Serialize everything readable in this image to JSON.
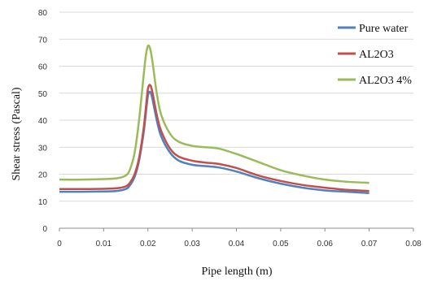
{
  "chart_data": {
    "type": "line",
    "title": "",
    "xlabel": "Pipe length (m)",
    "ylabel": "Shear stress (Pascal)",
    "xlim": [
      0,
      0.08
    ],
    "ylim": [
      0,
      80
    ],
    "xticks": [
      0,
      0.01,
      0.02,
      0.03,
      0.04,
      0.05,
      0.06,
      0.07,
      0.08
    ],
    "yticks": [
      0,
      10,
      20,
      30,
      40,
      50,
      60,
      70,
      80
    ],
    "grid": "horizontal",
    "legend_position": "right",
    "series": [
      {
        "name": "Pure water",
        "color": "#4f81bd",
        "x": [
          0,
          0.005,
          0.01,
          0.013,
          0.015,
          0.016,
          0.017,
          0.018,
          0.019,
          0.0195,
          0.02,
          0.0205,
          0.021,
          0.022,
          0.023,
          0.025,
          0.027,
          0.03,
          0.033,
          0.036,
          0.04,
          0.045,
          0.05,
          0.055,
          0.06,
          0.065,
          0.07
        ],
        "y": [
          13.5,
          13.5,
          13.6,
          13.8,
          14.5,
          16.0,
          19.0,
          25.0,
          35.0,
          42.0,
          49.0,
          50.5,
          48.0,
          40.0,
          34.0,
          28.0,
          25.0,
          23.5,
          23.0,
          22.5,
          21.0,
          18.5,
          16.5,
          15.0,
          14.0,
          13.5,
          13.0
        ]
      },
      {
        "name": "AL2O3",
        "color": "#c0504d",
        "x": [
          0,
          0.005,
          0.01,
          0.013,
          0.015,
          0.016,
          0.017,
          0.018,
          0.019,
          0.0195,
          0.02,
          0.0205,
          0.021,
          0.022,
          0.023,
          0.025,
          0.027,
          0.03,
          0.033,
          0.036,
          0.04,
          0.045,
          0.05,
          0.055,
          0.06,
          0.065,
          0.07
        ],
        "y": [
          14.5,
          14.5,
          14.6,
          14.8,
          15.5,
          17.0,
          20.0,
          26.0,
          36.5,
          44.0,
          51.5,
          53.0,
          50.5,
          42.0,
          36.0,
          29.5,
          26.5,
          25.0,
          24.3,
          23.8,
          22.3,
          19.5,
          17.5,
          16.0,
          15.0,
          14.2,
          13.8
        ]
      },
      {
        "name": "AL2O3 4%",
        "color": "#9bbb59",
        "x": [
          0,
          0.005,
          0.01,
          0.013,
          0.015,
          0.016,
          0.017,
          0.018,
          0.019,
          0.0195,
          0.02,
          0.0205,
          0.021,
          0.022,
          0.023,
          0.025,
          0.027,
          0.03,
          0.033,
          0.036,
          0.04,
          0.045,
          0.05,
          0.055,
          0.06,
          0.065,
          0.07
        ],
        "y": [
          18.0,
          18.0,
          18.2,
          18.5,
          19.5,
          22.0,
          28.0,
          40.0,
          56.0,
          63.5,
          67.5,
          66.5,
          62.0,
          50.0,
          42.0,
          35.0,
          32.0,
          30.5,
          30.0,
          29.5,
          27.5,
          24.5,
          21.5,
          19.5,
          18.0,
          17.2,
          16.8
        ]
      }
    ]
  }
}
